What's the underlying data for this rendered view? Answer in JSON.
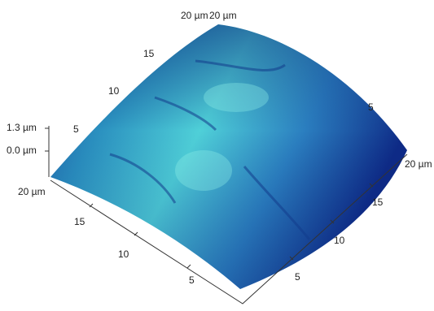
{
  "axes": {
    "back_left": [
      "5",
      "10",
      "15",
      "20 µm"
    ],
    "back_top": "20 µm",
    "back_right": "5",
    "z": [
      "1.3 µm",
      "0.0 µm"
    ],
    "front_left": [
      "20 µm",
      "15",
      "10",
      "5"
    ],
    "front_right": [
      "5",
      "10",
      "15",
      "20 µm"
    ]
  }
}
